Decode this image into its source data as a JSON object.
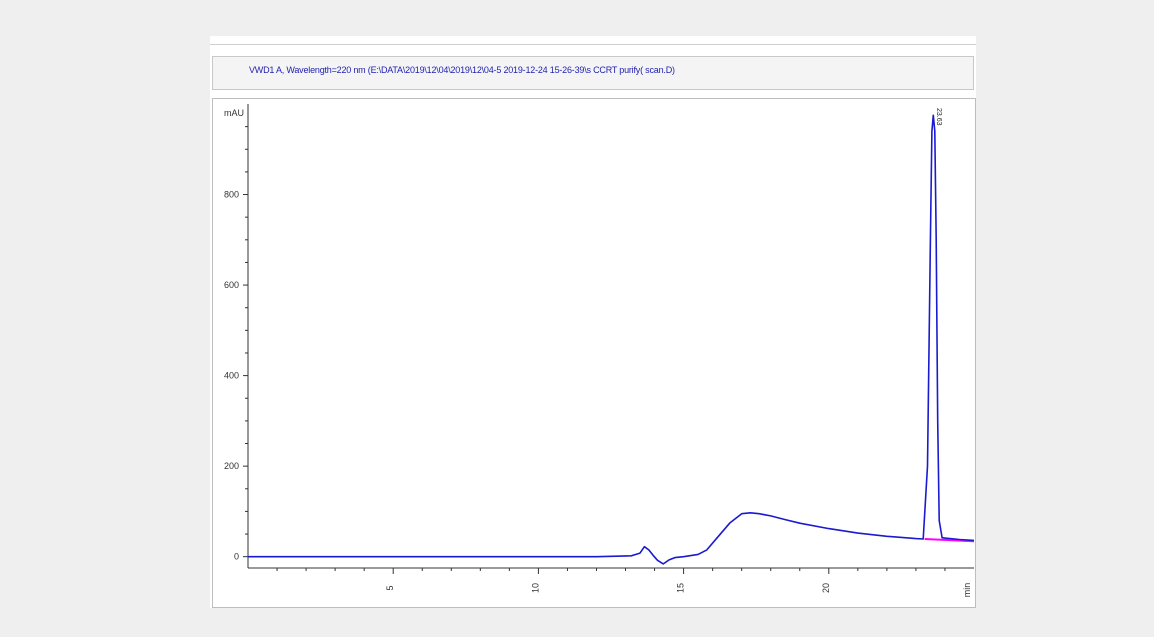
{
  "header": {
    "title": "VWD1 A, Wavelength=220 nm (E:\\DATA\\2019\\12\\04\\2019\\12\\04-5 2019-12-24 15-26-39\\s CCRT purify( scan.D)"
  },
  "chart_data": {
    "type": "line",
    "title": "VWD1 A, Wavelength=220 nm (E:\\DATA\\2019\\12\\04\\2019\\12\\04-5 2019-12-24 15-26-39\\s CCRT purify( scan.D)",
    "xlabel": "min",
    "ylabel": "mAU",
    "xlim": [
      0,
      25
    ],
    "ylim": [
      -25,
      1000
    ],
    "x_ticks": [
      5,
      10,
      15,
      20
    ],
    "y_ticks": [
      0,
      200,
      400,
      600,
      800
    ],
    "grid": false,
    "colors": {
      "signal": "#1a1ad0",
      "baseline": "#ff00ff",
      "axis": "#333333"
    },
    "series": [
      {
        "x": [
          0,
          2,
          4,
          6,
          8,
          10,
          12,
          13.2,
          13.5,
          13.65,
          13.8,
          13.95,
          14.1,
          14.3,
          14.5,
          14.7,
          15.0,
          15.5,
          15.8,
          16.2,
          16.6,
          17.0,
          17.3,
          17.6,
          18.0,
          18.5,
          19.0,
          20.0,
          21.0,
          22.0,
          23.0,
          23.25,
          23.4,
          23.5,
          23.55,
          23.6,
          23.65,
          23.7,
          23.75,
          23.8,
          23.9,
          24.0,
          24.5,
          25.0
        ],
        "y": [
          0,
          0,
          0,
          0,
          0,
          0,
          0,
          2,
          8,
          22,
          15,
          3,
          -8,
          -16,
          -7,
          -2,
          0,
          5,
          15,
          45,
          75,
          95,
          97,
          95,
          90,
          82,
          74,
          62,
          52,
          45,
          40,
          39,
          200,
          700,
          940,
          975,
          940,
          700,
          300,
          80,
          42,
          41,
          38,
          36
        ]
      }
    ],
    "annotations": [
      {
        "x": 23.63,
        "text": "23.63"
      }
    ]
  }
}
